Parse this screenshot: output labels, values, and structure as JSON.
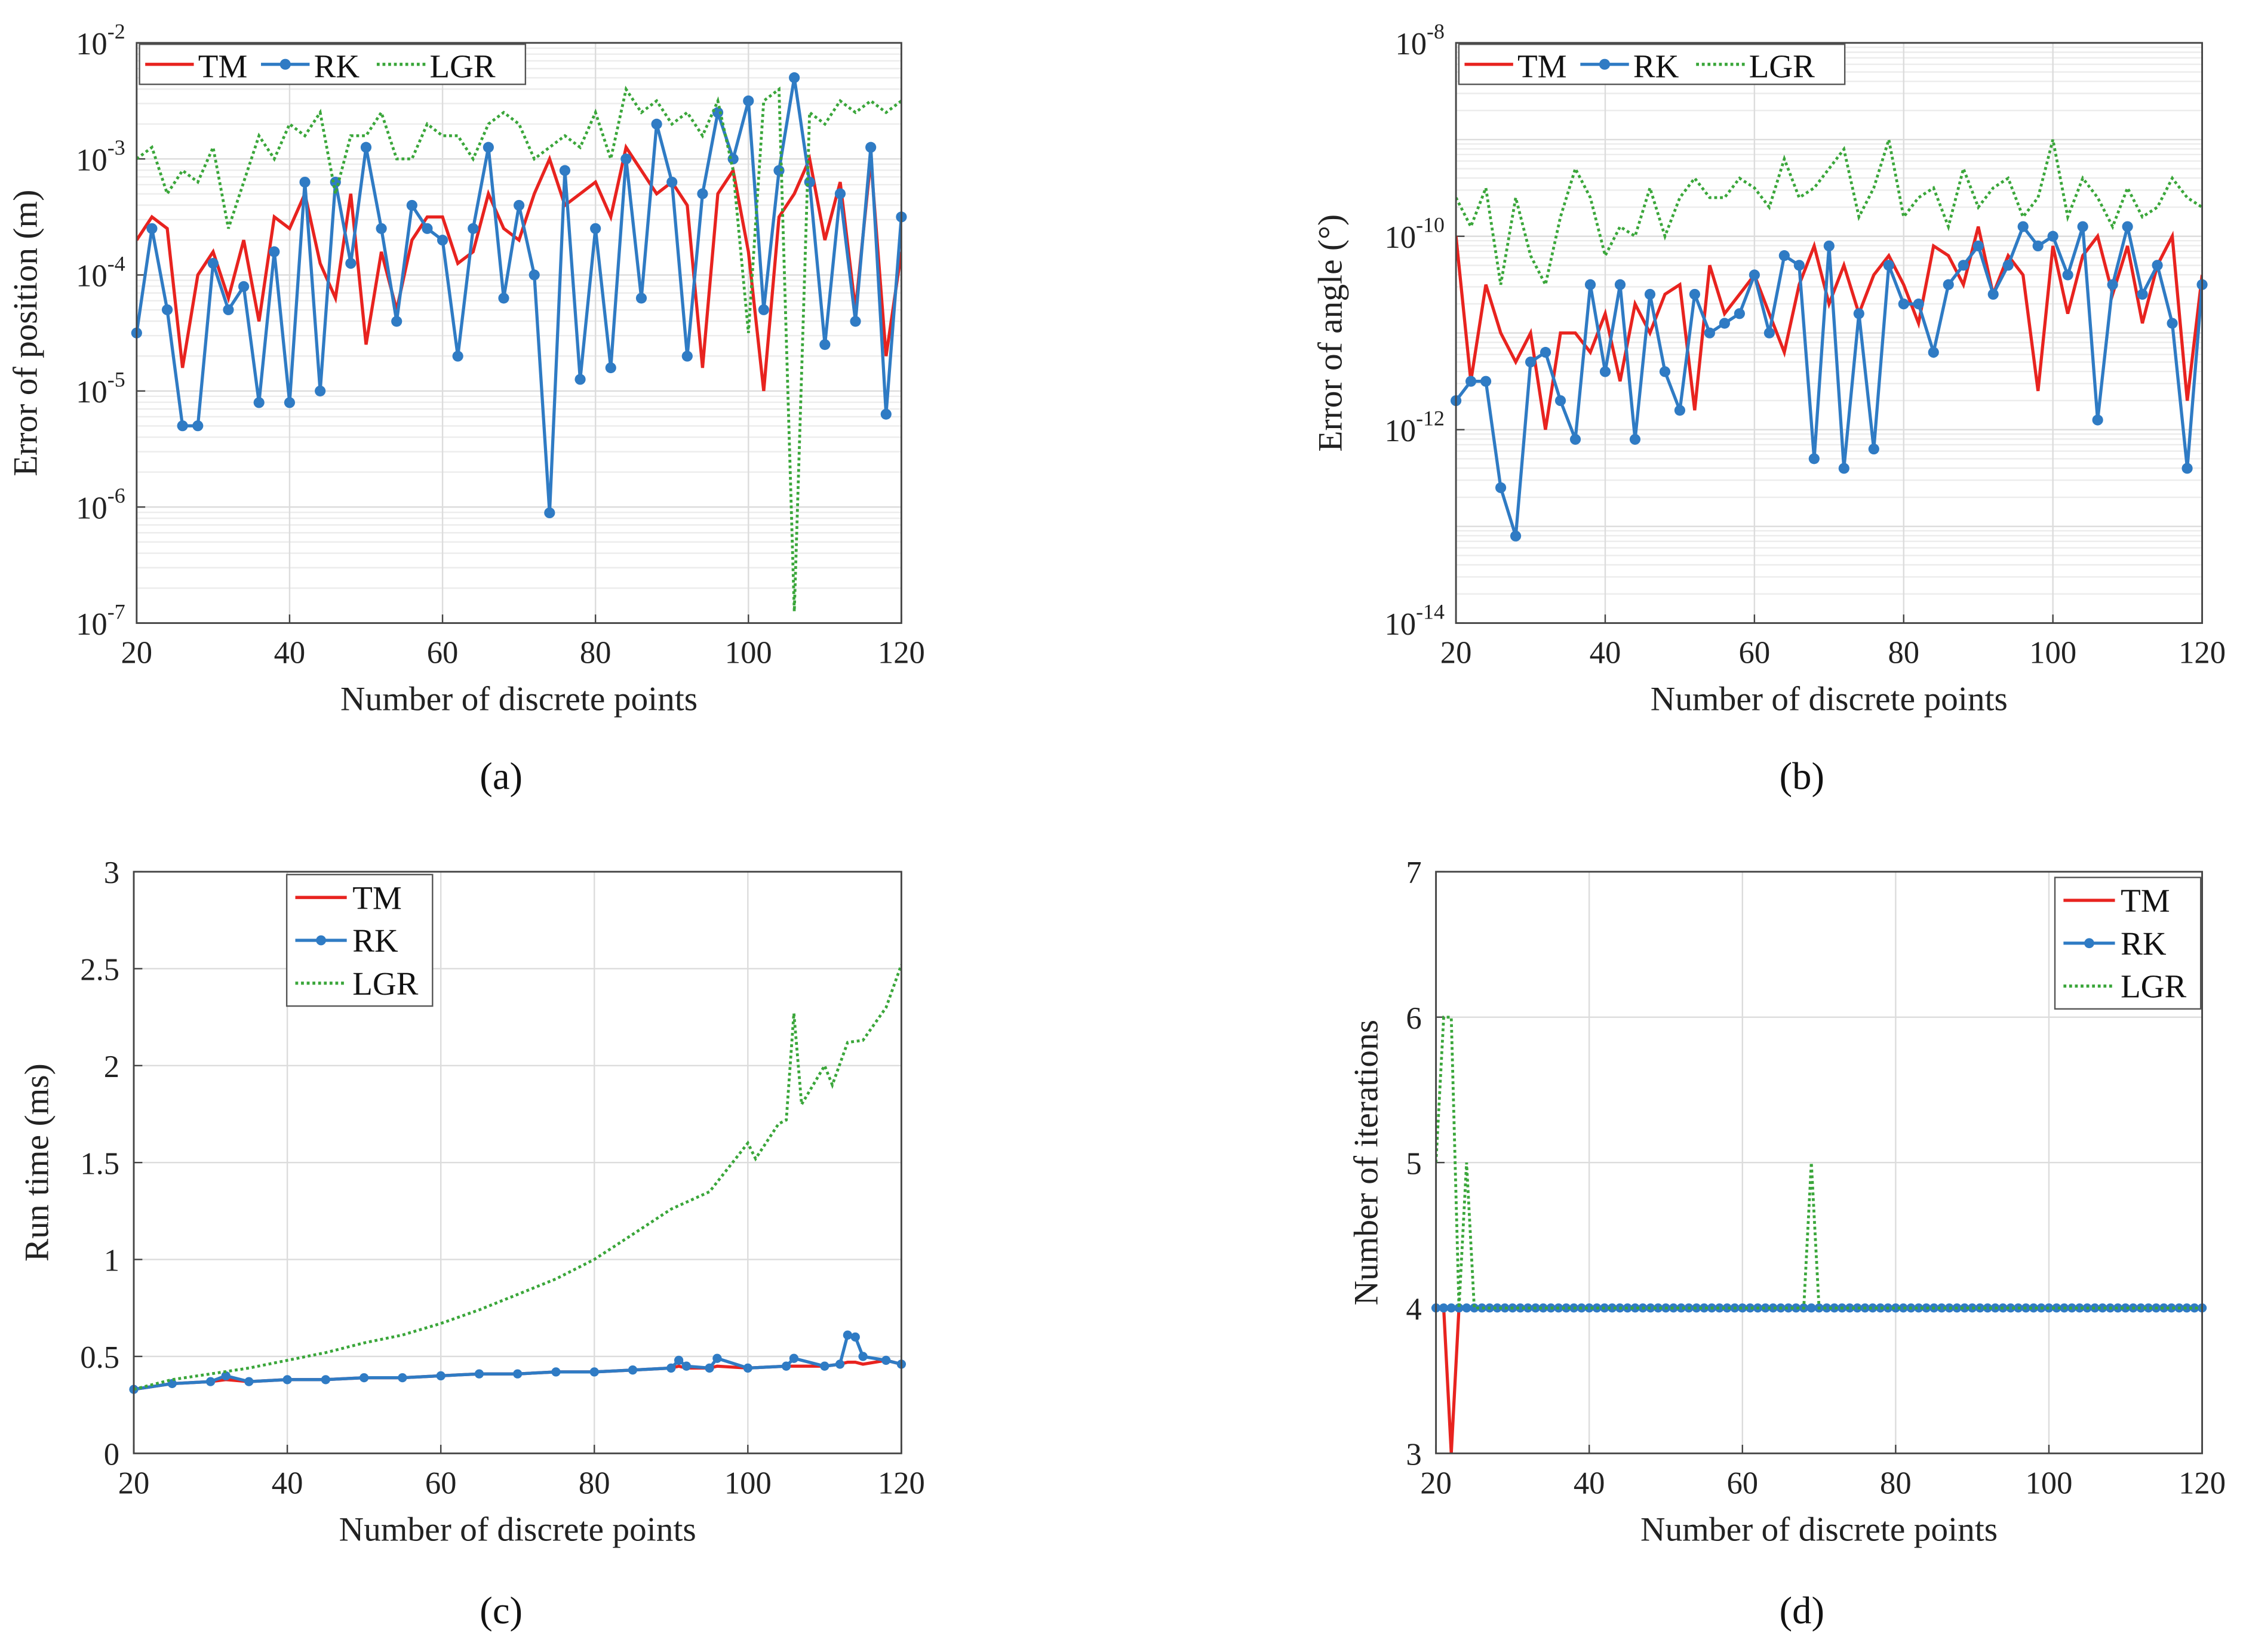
{
  "colors": {
    "TM": "#e8231f",
    "RK": "#2f7bc4",
    "LGR": "#3aa63a"
  },
  "chart_data": [
    {
      "panel": "(a)",
      "panel_letter": "a",
      "type": "line",
      "yscale": "log",
      "ylim_exp": [
        -7,
        -2
      ],
      "yticks_exp": [
        -7,
        -6,
        -5,
        -4,
        -3,
        -2
      ],
      "xlim": [
        20,
        120
      ],
      "xticks": [
        20,
        40,
        60,
        80,
        100,
        120
      ],
      "xlabel": "Number of discrete points",
      "ylabel": "Error of position (m)",
      "legend": "top-left-horizontal",
      "series": [
        {
          "name": "TM",
          "x_start": 20,
          "x_step": 2,
          "log10_values": [
            -3.7,
            -3.5,
            -3.6,
            -4.8,
            -4.0,
            -3.8,
            -4.2,
            -3.7,
            -4.4,
            -3.5,
            -3.6,
            -3.3,
            -3.9,
            -4.2,
            -3.3,
            -4.6,
            -3.8,
            -4.3,
            -3.7,
            -3.5,
            -3.5,
            -3.9,
            -3.8,
            -3.3,
            -3.6,
            -3.7,
            -3.3,
            -3.0,
            -3.4,
            -3.3,
            -3.2,
            -3.5,
            -2.9,
            -3.1,
            -3.3,
            -3.2,
            -3.4,
            -4.8,
            -3.3,
            -3.1,
            -3.8,
            -5.0,
            -3.5,
            -3.3,
            -3.0,
            -3.7,
            -3.2,
            -4.3,
            -3.0,
            -4.7,
            -3.8
          ]
        },
        {
          "name": "RK",
          "x_start": 20,
          "x_step": 2,
          "log10_values": [
            -4.5,
            -3.6,
            -4.3,
            -5.3,
            -5.3,
            -3.9,
            -4.3,
            -4.1,
            -5.1,
            -3.8,
            -5.1,
            -3.2,
            -5.0,
            -3.2,
            -3.9,
            -2.9,
            -3.6,
            -4.4,
            -3.4,
            -3.6,
            -3.7,
            -4.7,
            -3.6,
            -2.9,
            -4.2,
            -3.4,
            -4.0,
            -6.05,
            -3.1,
            -4.9,
            -3.6,
            -4.8,
            -3.0,
            -4.2,
            -2.7,
            -3.2,
            -4.7,
            -3.3,
            -2.6,
            -3.0,
            -2.5,
            -4.3,
            -3.1,
            -2.3,
            -3.2,
            -4.6,
            -3.3,
            -4.4,
            -2.9,
            -5.2,
            -3.5
          ]
        },
        {
          "name": "LGR",
          "x_start": 20,
          "x_step": 2,
          "log10_values": [
            -3.0,
            -2.9,
            -3.3,
            -3.1,
            -3.2,
            -2.9,
            -3.6,
            -3.2,
            -2.8,
            -3.0,
            -2.7,
            -2.8,
            -2.6,
            -3.3,
            -2.8,
            -2.8,
            -2.6,
            -3.0,
            -3.0,
            -2.7,
            -2.8,
            -2.8,
            -3.0,
            -2.7,
            -2.6,
            -2.7,
            -3.0,
            -2.9,
            -2.8,
            -2.9,
            -2.6,
            -3.0,
            -2.4,
            -2.6,
            -2.5,
            -2.7,
            -2.6,
            -2.8,
            -2.5,
            -3.1,
            -4.5,
            -2.5,
            -2.4,
            -6.9,
            -2.6,
            -2.7,
            -2.5,
            -2.6,
            -2.5,
            -2.6,
            -2.5
          ]
        }
      ]
    },
    {
      "panel": "(b)",
      "panel_letter": "b",
      "type": "line",
      "yscale": "log",
      "ylim_exp": [
        -14,
        -8
      ],
      "yticks_exp": [
        -14,
        -12,
        -10,
        -8
      ],
      "xlim": [
        20,
        120
      ],
      "xticks": [
        20,
        40,
        60,
        80,
        100,
        120
      ],
      "xlabel": "Number of discrete points",
      "ylabel": "Error of angle (°)",
      "legend": "top-left-horizontal",
      "series": [
        {
          "name": "TM",
          "x_start": 20,
          "x_step": 2,
          "log10_values": [
            -10.0,
            -11.5,
            -10.5,
            -11.0,
            -11.3,
            -11.0,
            -12.0,
            -11.0,
            -11.0,
            -11.2,
            -10.8,
            -11.5,
            -10.7,
            -11.0,
            -10.6,
            -10.5,
            -11.8,
            -10.3,
            -10.8,
            -10.6,
            -10.4,
            -10.8,
            -11.2,
            -10.5,
            -10.1,
            -10.7,
            -10.3,
            -10.8,
            -10.4,
            -10.2,
            -10.5,
            -10.9,
            -10.1,
            -10.2,
            -10.5,
            -9.9,
            -10.6,
            -10.2,
            -10.4,
            -11.6,
            -10.1,
            -10.8,
            -10.2,
            -10.0,
            -10.6,
            -10.1,
            -10.9,
            -10.3,
            -10.0,
            -11.7,
            -10.4
          ]
        },
        {
          "name": "RK",
          "x_start": 20,
          "x_step": 2,
          "log10_values": [
            -11.7,
            -11.5,
            -11.5,
            -12.6,
            -13.1,
            -11.3,
            -11.2,
            -11.7,
            -12.1,
            -10.5,
            -11.4,
            -10.5,
            -12.1,
            -10.6,
            -11.4,
            -11.8,
            -10.6,
            -11.0,
            -10.9,
            -10.8,
            -10.4,
            -11.0,
            -10.2,
            -10.3,
            -12.3,
            -10.1,
            -12.4,
            -10.8,
            -12.2,
            -10.3,
            -10.7,
            -10.7,
            -11.2,
            -10.5,
            -10.3,
            -10.1,
            -10.6,
            -10.3,
            -9.9,
            -10.1,
            -10.0,
            -10.4,
            -9.9,
            -11.9,
            -10.5,
            -9.9,
            -10.6,
            -10.3,
            -10.9,
            -12.4,
            -10.5
          ]
        },
        {
          "name": "LGR",
          "x_start": 20,
          "x_step": 2,
          "log10_values": [
            -9.6,
            -9.9,
            -9.5,
            -10.5,
            -9.6,
            -10.2,
            -10.5,
            -9.8,
            -9.3,
            -9.6,
            -10.2,
            -9.9,
            -10.0,
            -9.5,
            -10.0,
            -9.6,
            -9.4,
            -9.6,
            -9.6,
            -9.4,
            -9.5,
            -9.7,
            -9.2,
            -9.6,
            -9.5,
            -9.3,
            -9.1,
            -9.8,
            -9.5,
            -9.0,
            -9.8,
            -9.6,
            -9.5,
            -9.9,
            -9.3,
            -9.7,
            -9.5,
            -9.4,
            -9.8,
            -9.6,
            -9.0,
            -9.8,
            -9.4,
            -9.6,
            -9.9,
            -9.5,
            -9.8,
            -9.7,
            -9.4,
            -9.6,
            -9.7
          ]
        }
      ]
    },
    {
      "panel": "(c)",
      "panel_letter": "c",
      "type": "line",
      "yscale": "linear",
      "ylim": [
        0,
        3
      ],
      "yticks": [
        0,
        0.5,
        1,
        1.5,
        2,
        2.5,
        3
      ],
      "yticklabels": [
        "0",
        "0.5",
        "1",
        "1.5",
        "2",
        "2.5",
        "3"
      ],
      "xlim": [
        20,
        120
      ],
      "xticks": [
        20,
        40,
        60,
        80,
        100,
        120
      ],
      "xlabel": "Number of discrete points",
      "ylabel": "Run time (ms)",
      "legend": "top-left-vertical",
      "series": [
        {
          "name": "TM",
          "x": [
            20,
            25,
            30,
            32,
            35,
            40,
            45,
            50,
            55,
            60,
            65,
            70,
            75,
            80,
            85,
            90,
            91,
            92,
            95,
            96,
            100,
            105,
            106,
            110,
            112,
            113,
            114,
            115,
            118,
            120
          ],
          "y": [
            0.33,
            0.36,
            0.37,
            0.38,
            0.37,
            0.38,
            0.38,
            0.39,
            0.39,
            0.4,
            0.41,
            0.41,
            0.42,
            0.42,
            0.43,
            0.44,
            0.45,
            0.44,
            0.44,
            0.45,
            0.44,
            0.45,
            0.45,
            0.45,
            0.46,
            0.47,
            0.47,
            0.46,
            0.48,
            0.46
          ]
        },
        {
          "name": "RK",
          "x": [
            20,
            25,
            30,
            32,
            35,
            40,
            45,
            50,
            55,
            60,
            65,
            70,
            75,
            80,
            85,
            90,
            91,
            92,
            95,
            96,
            100,
            105,
            106,
            110,
            112,
            113,
            114,
            115,
            118,
            120
          ],
          "y": [
            0.33,
            0.36,
            0.37,
            0.4,
            0.37,
            0.38,
            0.38,
            0.39,
            0.39,
            0.4,
            0.41,
            0.41,
            0.42,
            0.42,
            0.43,
            0.44,
            0.48,
            0.45,
            0.44,
            0.49,
            0.44,
            0.45,
            0.49,
            0.45,
            0.46,
            0.61,
            0.6,
            0.5,
            0.48,
            0.46
          ]
        },
        {
          "name": "LGR",
          "x": [
            20,
            25,
            30,
            35,
            40,
            45,
            50,
            55,
            60,
            65,
            70,
            75,
            80,
            85,
            90,
            95,
            100,
            101,
            104,
            105,
            106,
            107,
            110,
            111,
            113,
            115,
            118,
            120
          ],
          "y": [
            0.33,
            0.38,
            0.41,
            0.44,
            0.48,
            0.52,
            0.57,
            0.61,
            0.67,
            0.74,
            0.82,
            0.9,
            1.0,
            1.13,
            1.26,
            1.35,
            1.6,
            1.52,
            1.7,
            1.72,
            2.27,
            1.8,
            2.0,
            1.9,
            2.12,
            2.13,
            2.3,
            2.52
          ]
        }
      ]
    },
    {
      "panel": "(d)",
      "panel_letter": "d",
      "type": "line",
      "yscale": "linear",
      "ylim": [
        3,
        7
      ],
      "yticks": [
        3,
        4,
        5,
        6,
        7
      ],
      "yticklabels": [
        "3",
        "4",
        "5",
        "6",
        "7"
      ],
      "xlim": [
        20,
        120
      ],
      "xticks": [
        20,
        40,
        60,
        80,
        100,
        120
      ],
      "xlabel": "Number of discrete points",
      "ylabel": "Number of iterations",
      "legend": "top-right-vertical",
      "series": [
        {
          "name": "TM",
          "x": [
            20,
            21,
            22,
            23,
            120
          ],
          "y": [
            4,
            4,
            3,
            4,
            4
          ]
        },
        {
          "name": "RK",
          "x_start": 20,
          "x_step": 1,
          "count": 101,
          "constant": 4
        },
        {
          "name": "LGR",
          "x": [
            20,
            21,
            22,
            23,
            24,
            25,
            68,
            69,
            70,
            120
          ],
          "y": [
            5,
            6,
            6,
            4,
            5,
            4,
            4,
            5,
            4,
            4
          ]
        }
      ]
    }
  ]
}
